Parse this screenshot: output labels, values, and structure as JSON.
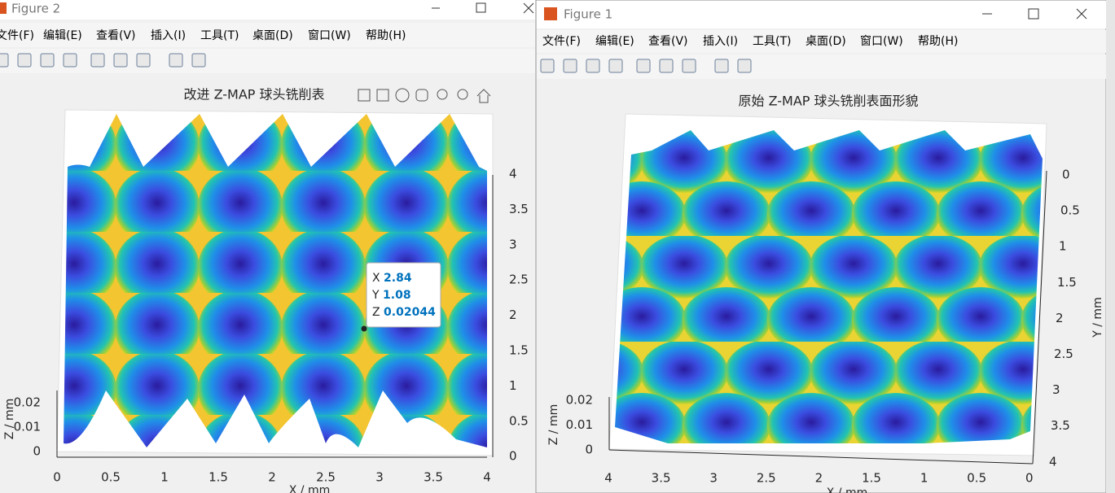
{
  "figure2": {
    "window_title": "Figure 2",
    "menu": [
      "文件(F)",
      "编辑(E)",
      "查看(V)",
      "插入(I)",
      "工具(T)",
      "桌面(D)",
      "窗口(W)",
      "帮助(H)"
    ],
    "plot_title": "改进 Z-MAP 球头铣削表",
    "x_ticks": [
      "0",
      "0.5",
      "1",
      "1.5",
      "2",
      "2.5",
      "3",
      "3.5",
      "4"
    ],
    "y_ticks": [
      "4",
      "3.5",
      "3",
      "2.5",
      "2",
      "1.5",
      "1",
      "0.5",
      "0"
    ],
    "z_ticks": [
      "0.02",
      "0.01",
      "0"
    ],
    "x_label": "X / mm",
    "z_label": "Z / mm",
    "datatip": {
      "x_key": "X",
      "x": "2.84",
      "y_key": "Y",
      "y": "1.08",
      "z_key": "Z",
      "z": "0.02044"
    }
  },
  "figure1": {
    "window_title": "Figure 1",
    "menu": [
      "文件(F)",
      "编辑(E)",
      "查看(V)",
      "插入(I)",
      "工具(T)",
      "桌面(D)",
      "窗口(W)",
      "帮助(H)"
    ],
    "plot_title": "原始 Z-MAP 球头铣削表面形貌",
    "x_ticks": [
      "4",
      "3.5",
      "3",
      "2.5",
      "2",
      "1.5",
      "1",
      "0.5",
      "0"
    ],
    "y_ticks": [
      "0",
      "0.5",
      "1",
      "1.5",
      "2",
      "2.5",
      "3",
      "3.5",
      "4"
    ],
    "z_ticks": [
      "0.02",
      "0.01",
      "0"
    ],
    "x_label": "X / mm",
    "y_label": "Y / mm",
    "z_label": "Z / mm"
  }
}
